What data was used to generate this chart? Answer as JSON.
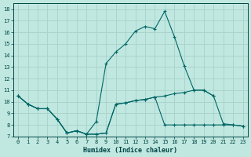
{
  "xlabel": "Humidex (Indice chaleur)",
  "bg_color": "#c0e8e0",
  "grid_color": "#aad4cc",
  "line_color": "#006666",
  "xlim": [
    -0.5,
    23.5
  ],
  "ylim": [
    7,
    18.5
  ],
  "xticks": [
    0,
    1,
    2,
    3,
    4,
    5,
    6,
    7,
    8,
    9,
    10,
    11,
    12,
    13,
    14,
    15,
    16,
    17,
    18,
    19,
    20,
    21,
    22,
    23
  ],
  "yticks": [
    7,
    8,
    9,
    10,
    11,
    12,
    13,
    14,
    15,
    16,
    17,
    18
  ],
  "series": [
    {
      "x": [
        0,
        1,
        2,
        3,
        4,
        5,
        6,
        7,
        8,
        9,
        10,
        11,
        12,
        13,
        14,
        15,
        16,
        17,
        18,
        19,
        20,
        21,
        22,
        23
      ],
      "y": [
        10.5,
        9.8,
        9.4,
        9.4,
        8.5,
        7.3,
        7.5,
        7.2,
        8.3,
        13.3,
        14.3,
        15.0,
        16.1,
        16.5,
        16.3,
        17.8,
        15.6,
        13.1,
        11.0,
        11.0,
        10.5,
        8.1,
        8.0,
        7.9
      ]
    },
    {
      "x": [
        0,
        1,
        2,
        3,
        4,
        5,
        6,
        7,
        8,
        9,
        10,
        11,
        12,
        13,
        14,
        15,
        16,
        17,
        18,
        19,
        20,
        21,
        22,
        23
      ],
      "y": [
        10.5,
        9.8,
        9.4,
        9.4,
        8.5,
        7.3,
        7.5,
        7.2,
        7.2,
        7.3,
        9.8,
        9.9,
        10.1,
        10.2,
        10.4,
        10.5,
        10.7,
        10.8,
        11.0,
        11.0,
        10.5,
        null,
        null,
        null
      ]
    },
    {
      "x": [
        0,
        1,
        2,
        3,
        4,
        5,
        6,
        7,
        8,
        9,
        10,
        11,
        12,
        13,
        14,
        15,
        16,
        17,
        18,
        19,
        20,
        21,
        22,
        23
      ],
      "y": [
        10.5,
        9.8,
        9.4,
        9.4,
        8.5,
        7.3,
        7.5,
        7.2,
        7.2,
        7.3,
        9.8,
        9.9,
        10.1,
        10.2,
        10.4,
        8.0,
        8.0,
        8.0,
        8.0,
        8.0,
        8.0,
        8.0,
        8.0,
        7.9
      ]
    }
  ]
}
